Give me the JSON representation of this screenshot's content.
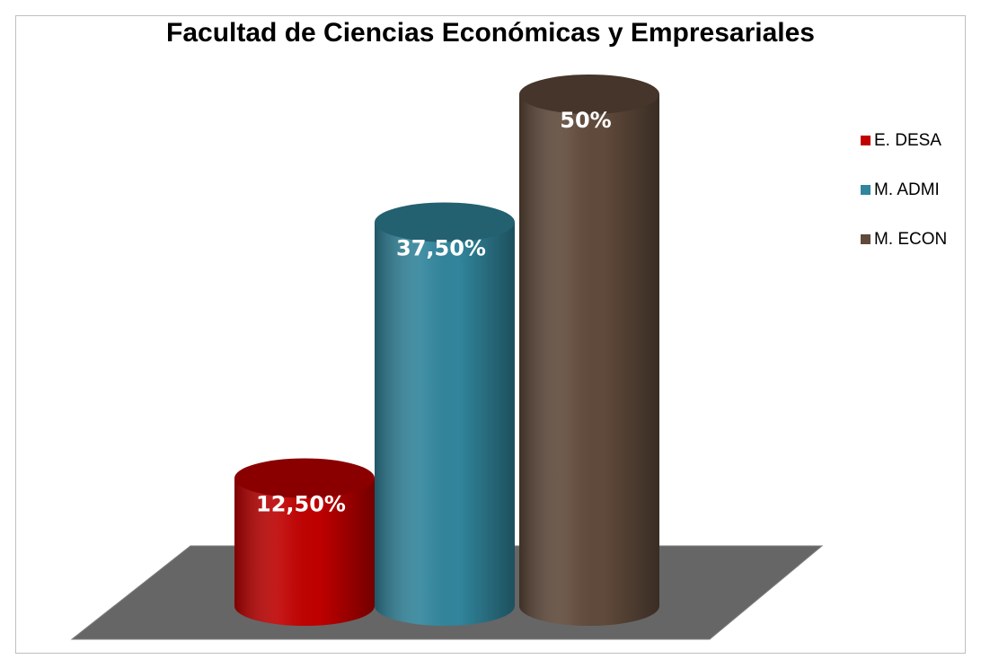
{
  "chart_data": {
    "type": "cylinder",
    "title": "Facultad de Ciencias Económicas y Empresariales",
    "series": [
      {
        "name": "E. DESA",
        "color": "#c00000",
        "values": [
          12.5
        ],
        "value_labels": [
          "12,50%"
        ]
      },
      {
        "name": "M. ADMI",
        "color": "#31859c",
        "values": [
          37.5
        ],
        "value_labels": [
          "37,50%"
        ]
      },
      {
        "name": "M. ECON",
        "color": "#604a3b",
        "values": [
          50
        ],
        "value_labels": [
          "50%"
        ]
      }
    ],
    "legend": "right"
  }
}
